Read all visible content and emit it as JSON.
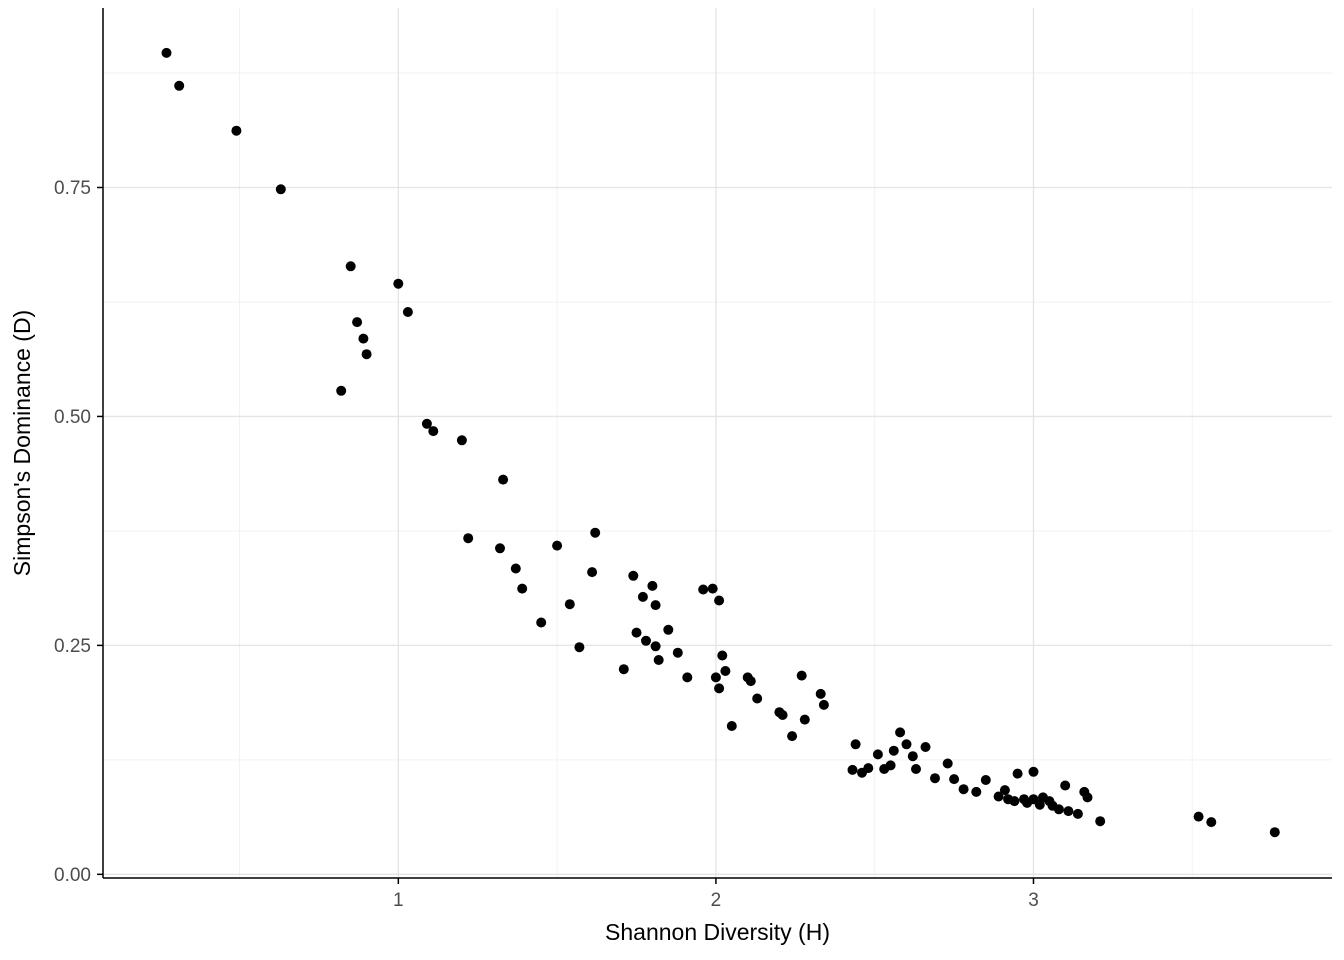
{
  "chart_data": {
    "type": "scatter",
    "title": "",
    "xlabel": "Shannon Diversity (H)",
    "ylabel": "Simpson's Dominance (D)",
    "xlim": [
      0.07,
      3.94
    ],
    "ylim": [
      -0.004,
      0.946
    ],
    "x_ticks": [
      {
        "value": 1,
        "label": "1"
      },
      {
        "value": 2,
        "label": "2"
      },
      {
        "value": 3,
        "label": "3"
      }
    ],
    "y_ticks": [
      {
        "value": 0.0,
        "label": "0.00"
      },
      {
        "value": 0.25,
        "label": "0.25"
      },
      {
        "value": 0.5,
        "label": "0.50"
      },
      {
        "value": 0.75,
        "label": "0.75"
      }
    ],
    "x_minor": [
      0.5,
      1.5,
      2.5,
      3.5
    ],
    "y_minor": [
      0.125,
      0.375,
      0.625,
      0.875
    ],
    "grid_on": true,
    "legend": "none",
    "point_color": "#000000",
    "point_radius": 5,
    "axis_line_color": "#000000",
    "grid_major_color": "#e4e4e4",
    "grid_minor_color": "#f2f2f2",
    "tick_label_color": "#4d4d4d",
    "points": [
      [
        0.27,
        0.897
      ],
      [
        0.31,
        0.861
      ],
      [
        0.49,
        0.812
      ],
      [
        0.63,
        0.748
      ],
      [
        0.85,
        0.664
      ],
      [
        1.0,
        0.645
      ],
      [
        0.87,
        0.603
      ],
      [
        1.03,
        0.614
      ],
      [
        0.89,
        0.585
      ],
      [
        0.9,
        0.568
      ],
      [
        0.82,
        0.528
      ],
      [
        1.09,
        0.492
      ],
      [
        1.11,
        0.484
      ],
      [
        1.2,
        0.474
      ],
      [
        1.33,
        0.431
      ],
      [
        1.22,
        0.367
      ],
      [
        1.32,
        0.356
      ],
      [
        1.37,
        0.334
      ],
      [
        1.39,
        0.312
      ],
      [
        1.45,
        0.275
      ],
      [
        1.5,
        0.359
      ],
      [
        1.54,
        0.295
      ],
      [
        1.57,
        0.248
      ],
      [
        1.62,
        0.373
      ],
      [
        1.61,
        0.33
      ],
      [
        1.71,
        0.224
      ],
      [
        1.74,
        0.326
      ],
      [
        1.77,
        0.303
      ],
      [
        1.75,
        0.264
      ],
      [
        1.78,
        0.255
      ],
      [
        1.8,
        0.315
      ],
      [
        1.81,
        0.294
      ],
      [
        1.81,
        0.249
      ],
      [
        1.82,
        0.234
      ],
      [
        1.85,
        0.267
      ],
      [
        1.88,
        0.242
      ],
      [
        1.91,
        0.215
      ],
      [
        1.96,
        0.311
      ],
      [
        1.99,
        0.312
      ],
      [
        2.01,
        0.299
      ],
      [
        2.02,
        0.239
      ],
      [
        2.0,
        0.215
      ],
      [
        2.01,
        0.203
      ],
      [
        2.03,
        0.222
      ],
      [
        2.05,
        0.162
      ],
      [
        2.1,
        0.215
      ],
      [
        2.11,
        0.211
      ],
      [
        2.13,
        0.192
      ],
      [
        2.2,
        0.177
      ],
      [
        2.21,
        0.174
      ],
      [
        2.24,
        0.151
      ],
      [
        2.27,
        0.217
      ],
      [
        2.28,
        0.169
      ],
      [
        2.33,
        0.197
      ],
      [
        2.34,
        0.185
      ],
      [
        2.44,
        0.142
      ],
      [
        2.43,
        0.114
      ],
      [
        2.46,
        0.111
      ],
      [
        2.48,
        0.116
      ],
      [
        2.51,
        0.131
      ],
      [
        2.53,
        0.115
      ],
      [
        2.55,
        0.119
      ],
      [
        2.56,
        0.135
      ],
      [
        2.58,
        0.155
      ],
      [
        2.6,
        0.142
      ],
      [
        2.62,
        0.129
      ],
      [
        2.63,
        0.115
      ],
      [
        2.66,
        0.139
      ],
      [
        2.69,
        0.105
      ],
      [
        2.73,
        0.121
      ],
      [
        2.75,
        0.104
      ],
      [
        2.78,
        0.093
      ],
      [
        2.82,
        0.09
      ],
      [
        2.85,
        0.103
      ],
      [
        2.89,
        0.085
      ],
      [
        2.91,
        0.092
      ],
      [
        2.92,
        0.082
      ],
      [
        2.94,
        0.08
      ],
      [
        2.95,
        0.11
      ],
      [
        2.97,
        0.082
      ],
      [
        2.98,
        0.078
      ],
      [
        3.0,
        0.112
      ],
      [
        3.0,
        0.082
      ],
      [
        3.02,
        0.076
      ],
      [
        3.03,
        0.084
      ],
      [
        3.05,
        0.08
      ],
      [
        3.06,
        0.075
      ],
      [
        3.08,
        0.071
      ],
      [
        3.1,
        0.097
      ],
      [
        3.11,
        0.069
      ],
      [
        3.14,
        0.066
      ],
      [
        3.16,
        0.09
      ],
      [
        3.17,
        0.084
      ],
      [
        3.21,
        0.058
      ],
      [
        3.52,
        0.063
      ],
      [
        3.56,
        0.057
      ],
      [
        3.76,
        0.046
      ]
    ]
  }
}
